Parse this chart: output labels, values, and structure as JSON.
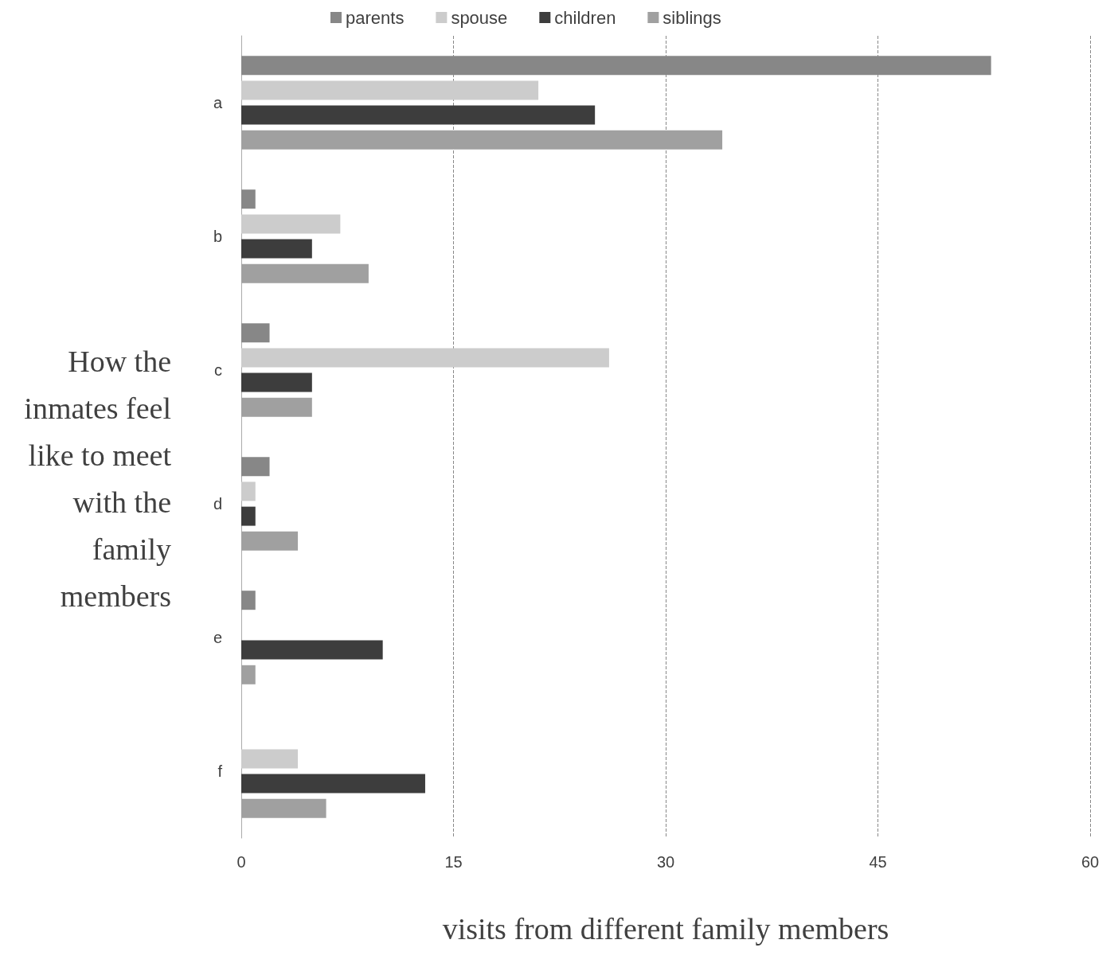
{
  "chart_data": {
    "type": "bar",
    "orientation": "horizontal",
    "xlabel": "visits from different family members",
    "ylabel": "How the inmates feel like to meet with the family members",
    "categories": [
      "a",
      "b",
      "c",
      "d",
      "e",
      "f"
    ],
    "series": [
      {
        "name": "parents",
        "color": "#878787",
        "values": [
          53,
          1,
          2,
          2,
          1,
          0
        ]
      },
      {
        "name": "spouse",
        "color": "#cccccc",
        "values": [
          21,
          7,
          26,
          1,
          0,
          4
        ]
      },
      {
        "name": "children",
        "color": "#3d3d3d",
        "values": [
          25,
          5,
          5,
          1,
          10,
          13
        ]
      },
      {
        "name": "siblings",
        "color": "#a0a0a0",
        "values": [
          34,
          9,
          5,
          4,
          1,
          6
        ]
      }
    ],
    "xlim": [
      0,
      60
    ],
    "xticks": [
      0,
      15,
      30,
      45,
      60
    ],
    "grid": "x",
    "legend": "top"
  }
}
